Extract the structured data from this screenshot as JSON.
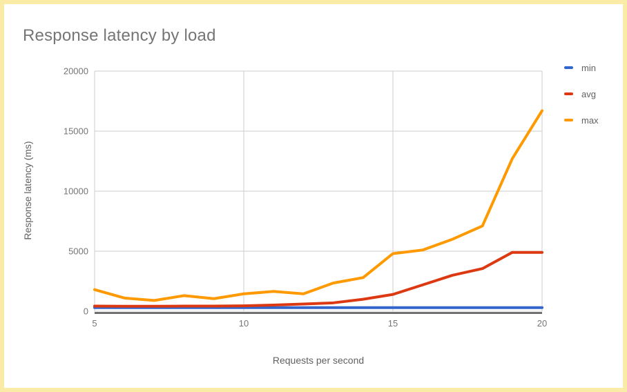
{
  "page": {
    "background": "#ffffff",
    "frame_color": "#faeca6"
  },
  "title": "Response latency by load",
  "chart_data": {
    "type": "line",
    "title": "Response latency by load",
    "xlabel": "Requests per second",
    "ylabel": "Response latency (ms)",
    "x": [
      5,
      6,
      7,
      8,
      9,
      10,
      11,
      12,
      13,
      14,
      15,
      16,
      17,
      18,
      19,
      20
    ],
    "series": [
      {
        "name": "min",
        "color": "#3366cc",
        "values": [
          300,
          300,
          300,
          300,
          300,
          300,
          300,
          300,
          300,
          300,
          300,
          300,
          300,
          300,
          300,
          300
        ]
      },
      {
        "name": "avg",
        "color": "#dc3912",
        "values": [
          430,
          420,
          420,
          430,
          430,
          450,
          520,
          600,
          700,
          1000,
          1400,
          2200,
          3000,
          3550,
          4900,
          4900
        ]
      },
      {
        "name": "max",
        "color": "#ff9900",
        "values": [
          1800,
          1100,
          900,
          1300,
          1050,
          1450,
          1650,
          1450,
          2350,
          2800,
          4800,
          5100,
          6000,
          7100,
          12700,
          16700
        ]
      }
    ],
    "xlim": [
      5,
      20
    ],
    "ylim": [
      0,
      20000
    ],
    "x_ticks": [
      5,
      10,
      15,
      20
    ],
    "y_ticks": [
      0,
      5000,
      10000,
      15000,
      20000
    ],
    "grid": true,
    "legend_position": "right-top",
    "gridline_color": "#cccccc",
    "axis_line_color": "#333333",
    "tick_label_color": "#757575",
    "axis_title_color": "#616161",
    "title_color": "#757575"
  }
}
